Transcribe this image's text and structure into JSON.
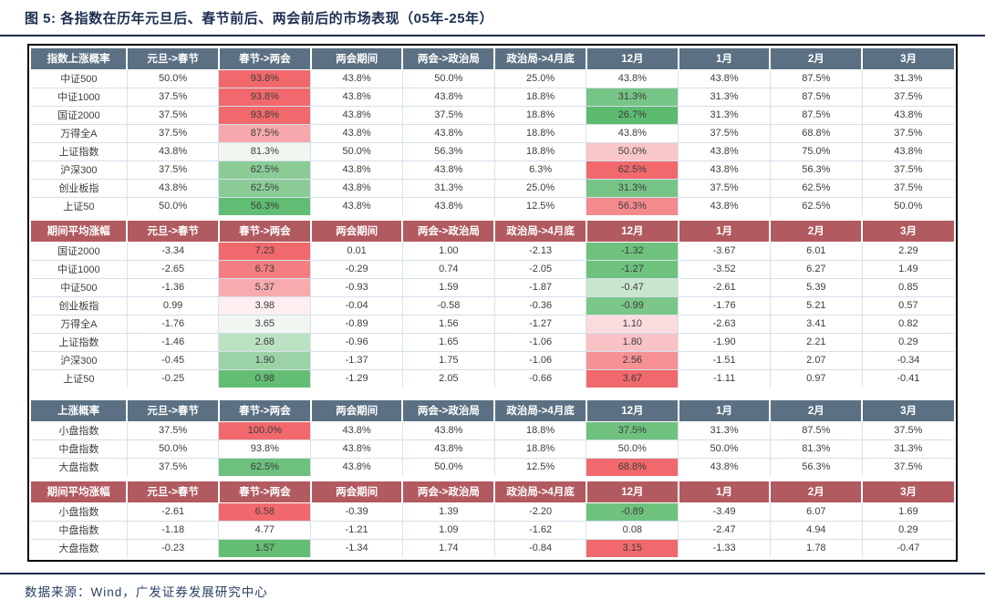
{
  "title": "图 5:  各指数在历年元旦后、春节前后、两会前后的市场表现（05年-25年）",
  "source": "数据来源：Wind，广发证券发展研究中心",
  "colors": {
    "title_navy": "#1C2E50",
    "rule_navy": "#1A2A45",
    "header_blue": "#5B7183",
    "header_maroon": "#B15A60",
    "highlight_red": "#F1696C",
    "highlight_green": "#6EC27E"
  },
  "columns": [
    "元旦->春节",
    "春节->两会",
    "两会期间",
    "两会->政治局",
    "政治局->4月底",
    "12月",
    "1月",
    "2月",
    "3月"
  ],
  "tables": [
    {
      "id": "index-up-probability",
      "header_style": "blue",
      "label": "指数上涨概率",
      "rows": [
        {
          "label": "中证500",
          "values": [
            "50.0%",
            "93.8%",
            "43.8%",
            "50.0%",
            "25.0%",
            "43.8%",
            "43.8%",
            "87.5%",
            "31.3%"
          ],
          "highlights": {
            "1": "#F1696C"
          }
        },
        {
          "label": "中证1000",
          "values": [
            "37.5%",
            "93.8%",
            "43.8%",
            "43.8%",
            "18.8%",
            "31.3%",
            "31.3%",
            "87.5%",
            "37.5%"
          ],
          "highlights": {
            "1": "#F1696C",
            "5": "#77C586"
          }
        },
        {
          "label": "国证2000",
          "values": [
            "37.5%",
            "93.8%",
            "43.8%",
            "37.5%",
            "18.8%",
            "26.7%",
            "31.3%",
            "87.5%",
            "43.8%"
          ],
          "highlights": {
            "1": "#F1696C",
            "5": "#5CBB6F"
          }
        },
        {
          "label": "万得全A",
          "values": [
            "37.5%",
            "87.5%",
            "43.8%",
            "43.8%",
            "18.8%",
            "43.8%",
            "37.5%",
            "68.8%",
            "37.5%"
          ],
          "highlights": {
            "1": "#F6A9AC"
          }
        },
        {
          "label": "上证指数",
          "values": [
            "43.8%",
            "81.3%",
            "50.0%",
            "56.3%",
            "18.8%",
            "50.0%",
            "43.8%",
            "75.0%",
            "43.8%"
          ],
          "highlights": {
            "1": "#EFF7F0",
            "5": "#F9C6C8"
          }
        },
        {
          "label": "沪深300",
          "values": [
            "37.5%",
            "62.5%",
            "43.8%",
            "43.8%",
            "6.3%",
            "62.5%",
            "43.8%",
            "56.3%",
            "37.5%"
          ],
          "highlights": {
            "1": "#8BCC96",
            "5": "#F1696C"
          }
        },
        {
          "label": "创业板指",
          "values": [
            "43.8%",
            "62.5%",
            "43.8%",
            "31.3%",
            "25.0%",
            "31.3%",
            "37.5%",
            "62.5%",
            "37.5%"
          ],
          "highlights": {
            "1": "#8BCC96",
            "5": "#77C586"
          }
        },
        {
          "label": "上证50",
          "values": [
            "50.0%",
            "56.3%",
            "43.8%",
            "43.8%",
            "12.5%",
            "56.3%",
            "43.8%",
            "62.5%",
            "50.0%"
          ],
          "highlights": {
            "1": "#60BD73",
            "5": "#F58A8D"
          }
        }
      ]
    },
    {
      "id": "index-avg-change",
      "header_style": "maroon",
      "label": "期间平均涨幅",
      "rows": [
        {
          "label": "国证2000",
          "values": [
            "-3.34",
            "7.23",
            "0.01",
            "1.00",
            "-2.13",
            "-1.32",
            "-3.67",
            "6.01",
            "2.29"
          ],
          "highlights": {
            "1": "#F1696C",
            "5": "#6EC27E"
          }
        },
        {
          "label": "中证1000",
          "values": [
            "-2.65",
            "6.73",
            "-0.29",
            "0.74",
            "-2.05",
            "-1.27",
            "-3.52",
            "6.27",
            "1.49"
          ],
          "highlights": {
            "1": "#F47E81",
            "5": "#6EC27E"
          }
        },
        {
          "label": "中证500",
          "values": [
            "-1.36",
            "5.37",
            "-0.93",
            "1.59",
            "-1.87",
            "-0.47",
            "-2.61",
            "5.39",
            "0.85"
          ],
          "highlights": {
            "1": "#F7ABAE",
            "5": "#C8E6CD"
          }
        },
        {
          "label": "创业板指",
          "values": [
            "0.99",
            "3.98",
            "-0.04",
            "-0.58",
            "-0.36",
            "-0.99",
            "-1.76",
            "5.21",
            "0.57"
          ],
          "highlights": {
            "1": "#FDEEEF",
            "5": "#7BC689"
          }
        },
        {
          "label": "万得全A",
          "values": [
            "-1.76",
            "3.65",
            "-0.89",
            "1.56",
            "-1.27",
            "1.10",
            "-2.63",
            "3.41",
            "0.82"
          ],
          "highlights": {
            "1": "#F0F7F1",
            "5": "#FBDCDE"
          }
        },
        {
          "label": "上证指数",
          "values": [
            "-1.46",
            "2.68",
            "-0.96",
            "1.65",
            "-1.06",
            "1.80",
            "-1.90",
            "2.21",
            "0.29"
          ],
          "highlights": {
            "1": "#BCE2C4",
            "5": "#F9C2C5"
          }
        },
        {
          "label": "沪深300",
          "values": [
            "-0.45",
            "1.90",
            "-1.37",
            "1.75",
            "-1.06",
            "2.56",
            "-1.51",
            "2.07",
            "-0.34"
          ],
          "highlights": {
            "1": "#9BD3A6",
            "5": "#F69194"
          }
        },
        {
          "label": "上证50",
          "values": [
            "-0.25",
            "0.98",
            "-1.29",
            "2.05",
            "-0.66",
            "3.67",
            "-1.11",
            "0.97",
            "-0.41"
          ],
          "highlights": {
            "1": "#63BE74",
            "5": "#F1696C"
          }
        }
      ]
    },
    {
      "id": "size-up-probability",
      "header_style": "blue",
      "label": "上涨概率",
      "rows": [
        {
          "label": "小盘指数",
          "values": [
            "37.5%",
            "100.0%",
            "43.8%",
            "43.8%",
            "18.8%",
            "37.5%",
            "31.3%",
            "87.5%",
            "37.5%"
          ],
          "highlights": {
            "1": "#F1696C",
            "5": "#6EC27E"
          }
        },
        {
          "label": "中盘指数",
          "values": [
            "50.0%",
            "93.8%",
            "43.8%",
            "43.8%",
            "18.8%",
            "50.0%",
            "50.0%",
            "81.3%",
            "31.3%"
          ],
          "highlights": {}
        },
        {
          "label": "大盘指数",
          "values": [
            "37.5%",
            "62.5%",
            "43.8%",
            "50.0%",
            "12.5%",
            "68.8%",
            "43.8%",
            "56.3%",
            "37.5%"
          ],
          "highlights": {
            "1": "#6CC17D",
            "5": "#F1696C"
          }
        }
      ]
    },
    {
      "id": "size-avg-change",
      "header_style": "maroon",
      "label": "期间平均涨幅",
      "rows": [
        {
          "label": "小盘指数",
          "values": [
            "-2.61",
            "6.58",
            "-0.39",
            "1.39",
            "-2.20",
            "-0.89",
            "-3.49",
            "6.07",
            "1.69"
          ],
          "highlights": {
            "1": "#F1696C",
            "5": "#6EC27E"
          }
        },
        {
          "label": "中盘指数",
          "values": [
            "-1.18",
            "4.77",
            "-1.21",
            "1.09",
            "-1.62",
            "0.08",
            "-2.47",
            "4.94",
            "0.29"
          ],
          "highlights": {}
        },
        {
          "label": "大盘指数",
          "values": [
            "-0.23",
            "1.57",
            "-1.34",
            "1.74",
            "-0.84",
            "3.15",
            "-1.33",
            "1.78",
            "-0.47"
          ],
          "highlights": {
            "1": "#63BE74",
            "5": "#F1696C"
          }
        }
      ]
    }
  ]
}
